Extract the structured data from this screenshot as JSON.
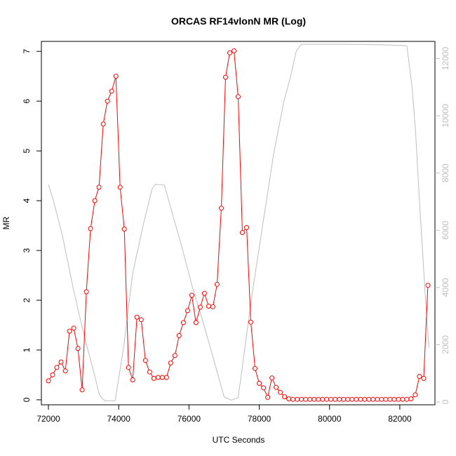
{
  "chart_data": {
    "type": "line",
    "title": "ORCAS RF14vlonN MR (Log)",
    "xlabel": "UTC Seconds",
    "ylabel": "MR",
    "xlim": [
      71800,
      83000
    ],
    "ylim": [
      -0.1,
      7.2
    ],
    "y2lim": [
      -100,
      12600
    ],
    "xticks": [
      72000,
      74000,
      76000,
      78000,
      80000,
      82000
    ],
    "yticks": [
      0,
      1,
      2,
      3,
      4,
      5,
      6,
      7
    ],
    "y2ticks": [
      0,
      2000,
      4000,
      6000,
      8000,
      10000,
      12000
    ],
    "colors": {
      "primary": "#ff0000",
      "secondary": "#bebebe"
    },
    "series": [
      {
        "axis": "left",
        "style": "line+points",
        "x": [
          72000,
          72120,
          72240,
          72360,
          72480,
          72600,
          72720,
          72840,
          72960,
          73080,
          73200,
          73320,
          73440,
          73560,
          73680,
          73800,
          73920,
          74040,
          74160,
          74280,
          74400,
          74520,
          74640,
          74760,
          74880,
          75000,
          75120,
          75240,
          75360,
          75480,
          75600,
          75720,
          75840,
          75960,
          76080,
          76200,
          76320,
          76440,
          76560,
          76680,
          76800,
          76920,
          77040,
          77160,
          77280,
          77400,
          77520,
          77640,
          77760,
          77880,
          78000,
          78120,
          78240,
          78360,
          78480,
          78600,
          78720,
          78840,
          78960,
          79080,
          79200,
          79320,
          79440,
          79560,
          79680,
          79800,
          79920,
          80040,
          80160,
          80280,
          80400,
          80520,
          80640,
          80760,
          80880,
          81000,
          81120,
          81240,
          81360,
          81480,
          81600,
          81720,
          81840,
          81960,
          82080,
          82200,
          82320,
          82440,
          82560,
          82680,
          82800
        ],
        "values": [
          0.38,
          0.5,
          0.65,
          0.76,
          0.58,
          1.38,
          1.44,
          1.03,
          0.2,
          2.17,
          3.44,
          4.0,
          4.27,
          5.54,
          6.0,
          6.2,
          6.5,
          4.27,
          3.43,
          0.65,
          0.4,
          1.66,
          1.61,
          0.79,
          0.56,
          0.43,
          0.45,
          0.45,
          0.45,
          0.74,
          0.89,
          1.29,
          1.55,
          1.79,
          2.1,
          1.55,
          1.86,
          2.14,
          1.88,
          1.87,
          2.32,
          3.85,
          6.48,
          6.97,
          7.01,
          6.09,
          3.36,
          3.46,
          1.56,
          0.63,
          0.33,
          0.24,
          0.05,
          0.44,
          0.25,
          0.15,
          0.06,
          0.02,
          0.01,
          0.01,
          0.01,
          0.01,
          0.01,
          0.01,
          0.01,
          0.01,
          0.01,
          0.01,
          0.01,
          0.01,
          0.01,
          0.01,
          0.01,
          0.01,
          0.01,
          0.01,
          0.01,
          0.01,
          0.01,
          0.01,
          0.01,
          0.01,
          0.01,
          0.01,
          0.01,
          0.01,
          0.02,
          0.1,
          0.47,
          0.43,
          2.3
        ]
      },
      {
        "axis": "right",
        "style": "line",
        "x": [
          72000,
          72150,
          72400,
          72700,
          73000,
          73300,
          73450,
          73600,
          73900,
          74150,
          74400,
          74700,
          74950,
          75050,
          75300,
          75500,
          75800,
          76100,
          76400,
          76700,
          77000,
          77200,
          77400,
          77550,
          77800,
          78100,
          78400,
          78700,
          78900,
          79050,
          79200,
          79400,
          79700,
          80500,
          81500,
          82200,
          82350,
          82450,
          82550,
          82650,
          82750,
          82830
        ],
        "values": [
          7600,
          7000,
          5800,
          4000,
          2400,
          1000,
          250,
          40,
          40,
          2000,
          4500,
          6200,
          7450,
          7600,
          7580,
          6700,
          5400,
          4000,
          2800,
          1500,
          180,
          60,
          150,
          1500,
          3800,
          6200,
          8600,
          10500,
          11400,
          12250,
          12500,
          12500,
          12500,
          12500,
          12480,
          12450,
          11000,
          9400,
          7200,
          5200,
          3200,
          1900
        ]
      }
    ]
  }
}
